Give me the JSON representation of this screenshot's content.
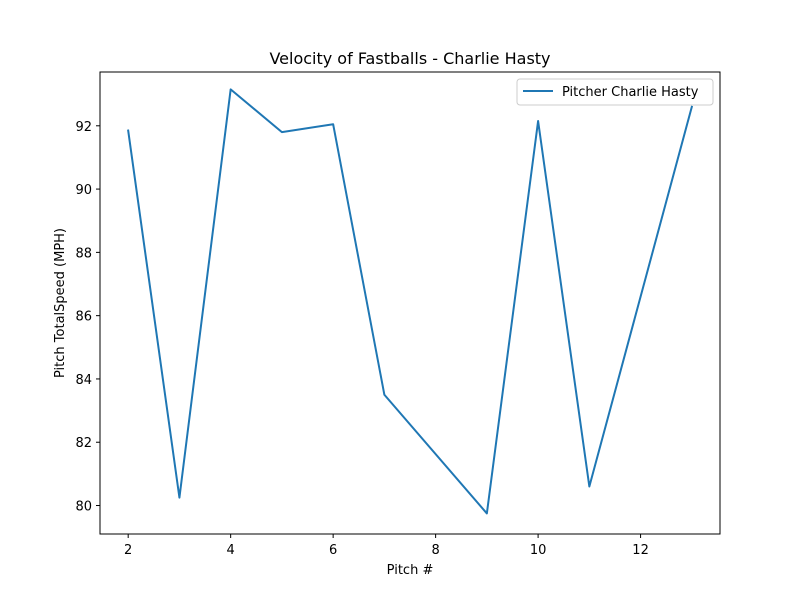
{
  "chart_data": {
    "type": "line",
    "title": "Velocity of Fastballs - Charlie Hasty",
    "xlabel": "Pitch #",
    "ylabel": "Pitch TotalSpeed (MPH)",
    "xlim": [
      1.45,
      13.55
    ],
    "ylim": [
      79.1,
      93.7
    ],
    "xticks": [
      2,
      4,
      6,
      8,
      10,
      12
    ],
    "yticks": [
      80,
      82,
      84,
      86,
      88,
      90,
      92
    ],
    "legend_position": "top-right",
    "series": [
      {
        "name": "Pitcher Charlie Hasty",
        "color": "#1f77b4",
        "x": [
          2,
          3,
          4,
          5,
          6,
          7,
          9,
          10,
          11,
          13
        ],
        "y": [
          91.85,
          80.25,
          93.15,
          91.8,
          92.05,
          83.5,
          79.75,
          92.15,
          80.6,
          92.6
        ]
      }
    ]
  }
}
